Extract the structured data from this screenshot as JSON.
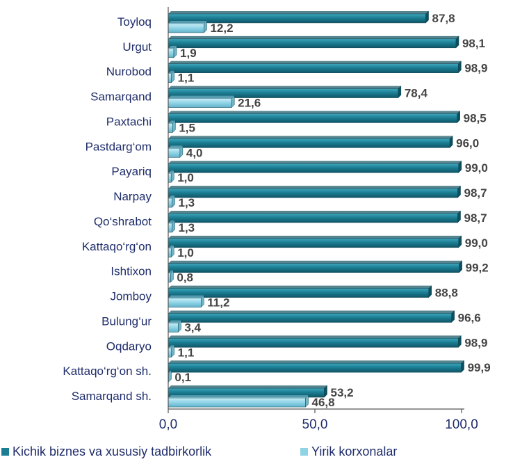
{
  "chart_data": {
    "type": "bar",
    "orientation": "horizontal",
    "categories": [
      "Toyloq",
      "Urgut",
      "Nurobod",
      "Samarqand",
      "Paxtachi",
      "Pastdarg‘om",
      "Payariq",
      "Narpay",
      "Qo‘shrabot",
      "Kattaqo‘rg‘on",
      "Ishtixon",
      "Jomboy",
      "Bulung‘ur",
      "Oqdaryo",
      "Kattaqo‘rg‘on  sh.",
      "Samarqand sh."
    ],
    "series": [
      {
        "name": "Kichik biznes  va xususiy tadbirkorlik",
        "color": "#1b7e93",
        "values": [
          87.8,
          98.1,
          98.9,
          78.4,
          98.5,
          96.0,
          99.0,
          98.7,
          98.7,
          99.0,
          99.2,
          88.8,
          96.6,
          98.9,
          99.9,
          53.2
        ],
        "labels": [
          "87,8",
          "98,1",
          "98,9",
          "78,4",
          "98,5",
          "96,0",
          "99,0",
          "98,7",
          "98,7",
          "99,0",
          "99,2",
          "88,8",
          "96,6",
          "98,9",
          "99,9",
          "53,2"
        ]
      },
      {
        "name": "Yirik korxonalar",
        "color": "#8fd3e6",
        "values": [
          12.2,
          1.9,
          1.1,
          21.6,
          1.5,
          4.0,
          1.0,
          1.3,
          1.3,
          1.0,
          0.8,
          11.2,
          3.4,
          1.1,
          0.1,
          46.8
        ],
        "labels": [
          "12,2",
          "1,9",
          "1,1",
          "21,6",
          "1,5",
          "4,0",
          "1,0",
          "1,3",
          "1,3",
          "1,0",
          "0,8",
          "11,2",
          "3,4",
          "1,1",
          "0,1",
          "46,8"
        ]
      }
    ],
    "xlim": [
      0,
      100
    ],
    "x_ticks": [
      0,
      50,
      100
    ],
    "x_tick_labels": [
      "0,0",
      "50,0",
      "100,0"
    ],
    "grid": false,
    "legend_position": "bottom"
  }
}
